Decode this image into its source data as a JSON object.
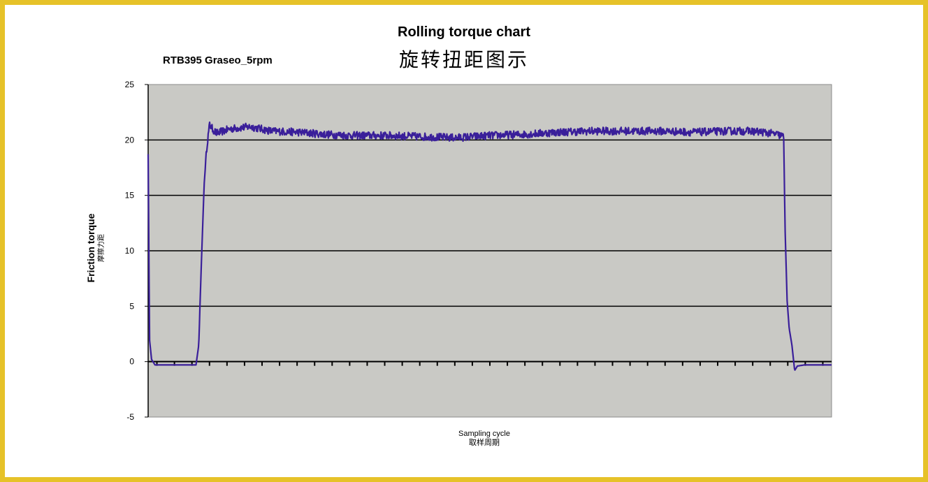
{
  "chart_data": {
    "type": "line",
    "title": "Rolling torque chart",
    "title_cn": "旋转扭距图示",
    "subtitle": "RTB395 Graseo_5rpm",
    "ylabel": "Friction torque",
    "ylabel_cn": "摩擦力距",
    "xlabel": "Sampling cycle",
    "xlabel_cn": "取样周期",
    "ylim": [
      -5,
      25
    ],
    "yticks": [
      "-5",
      "0",
      "5",
      "10",
      "15",
      "20",
      "25"
    ],
    "grid": true,
    "legend": "none",
    "colors": {
      "series": "#3a1f9a",
      "plot_bg": "#c9c9c5",
      "frame": "#e6c229"
    },
    "series": [
      {
        "name": "",
        "x": [
          0,
          0.2,
          0.5,
          1,
          3,
          6,
          7.0,
          7.4,
          7.8,
          8.2,
          8.6,
          9.0,
          9.4,
          10,
          12,
          15,
          18,
          22,
          26,
          30,
          35,
          40,
          45,
          50,
          55,
          60,
          65,
          70,
          75,
          80,
          85,
          88,
          90,
          92,
          93,
          93.2,
          93.5,
          93.8,
          94.2,
          94.6,
          95,
          96,
          100
        ],
        "y": [
          19,
          2,
          0.2,
          -0.3,
          -0.3,
          -0.3,
          -0.3,
          1.5,
          9,
          16,
          19.5,
          21.4,
          21.0,
          20.6,
          21.0,
          21.2,
          20.8,
          20.7,
          20.5,
          20.4,
          20.4,
          20.3,
          20.2,
          20.4,
          20.5,
          20.7,
          20.8,
          20.8,
          20.8,
          20.7,
          20.8,
          20.8,
          20.7,
          20.5,
          20.3,
          12,
          5.5,
          3,
          1.5,
          -0.8,
          -0.4,
          -0.3,
          -0.3
        ]
      }
    ]
  }
}
